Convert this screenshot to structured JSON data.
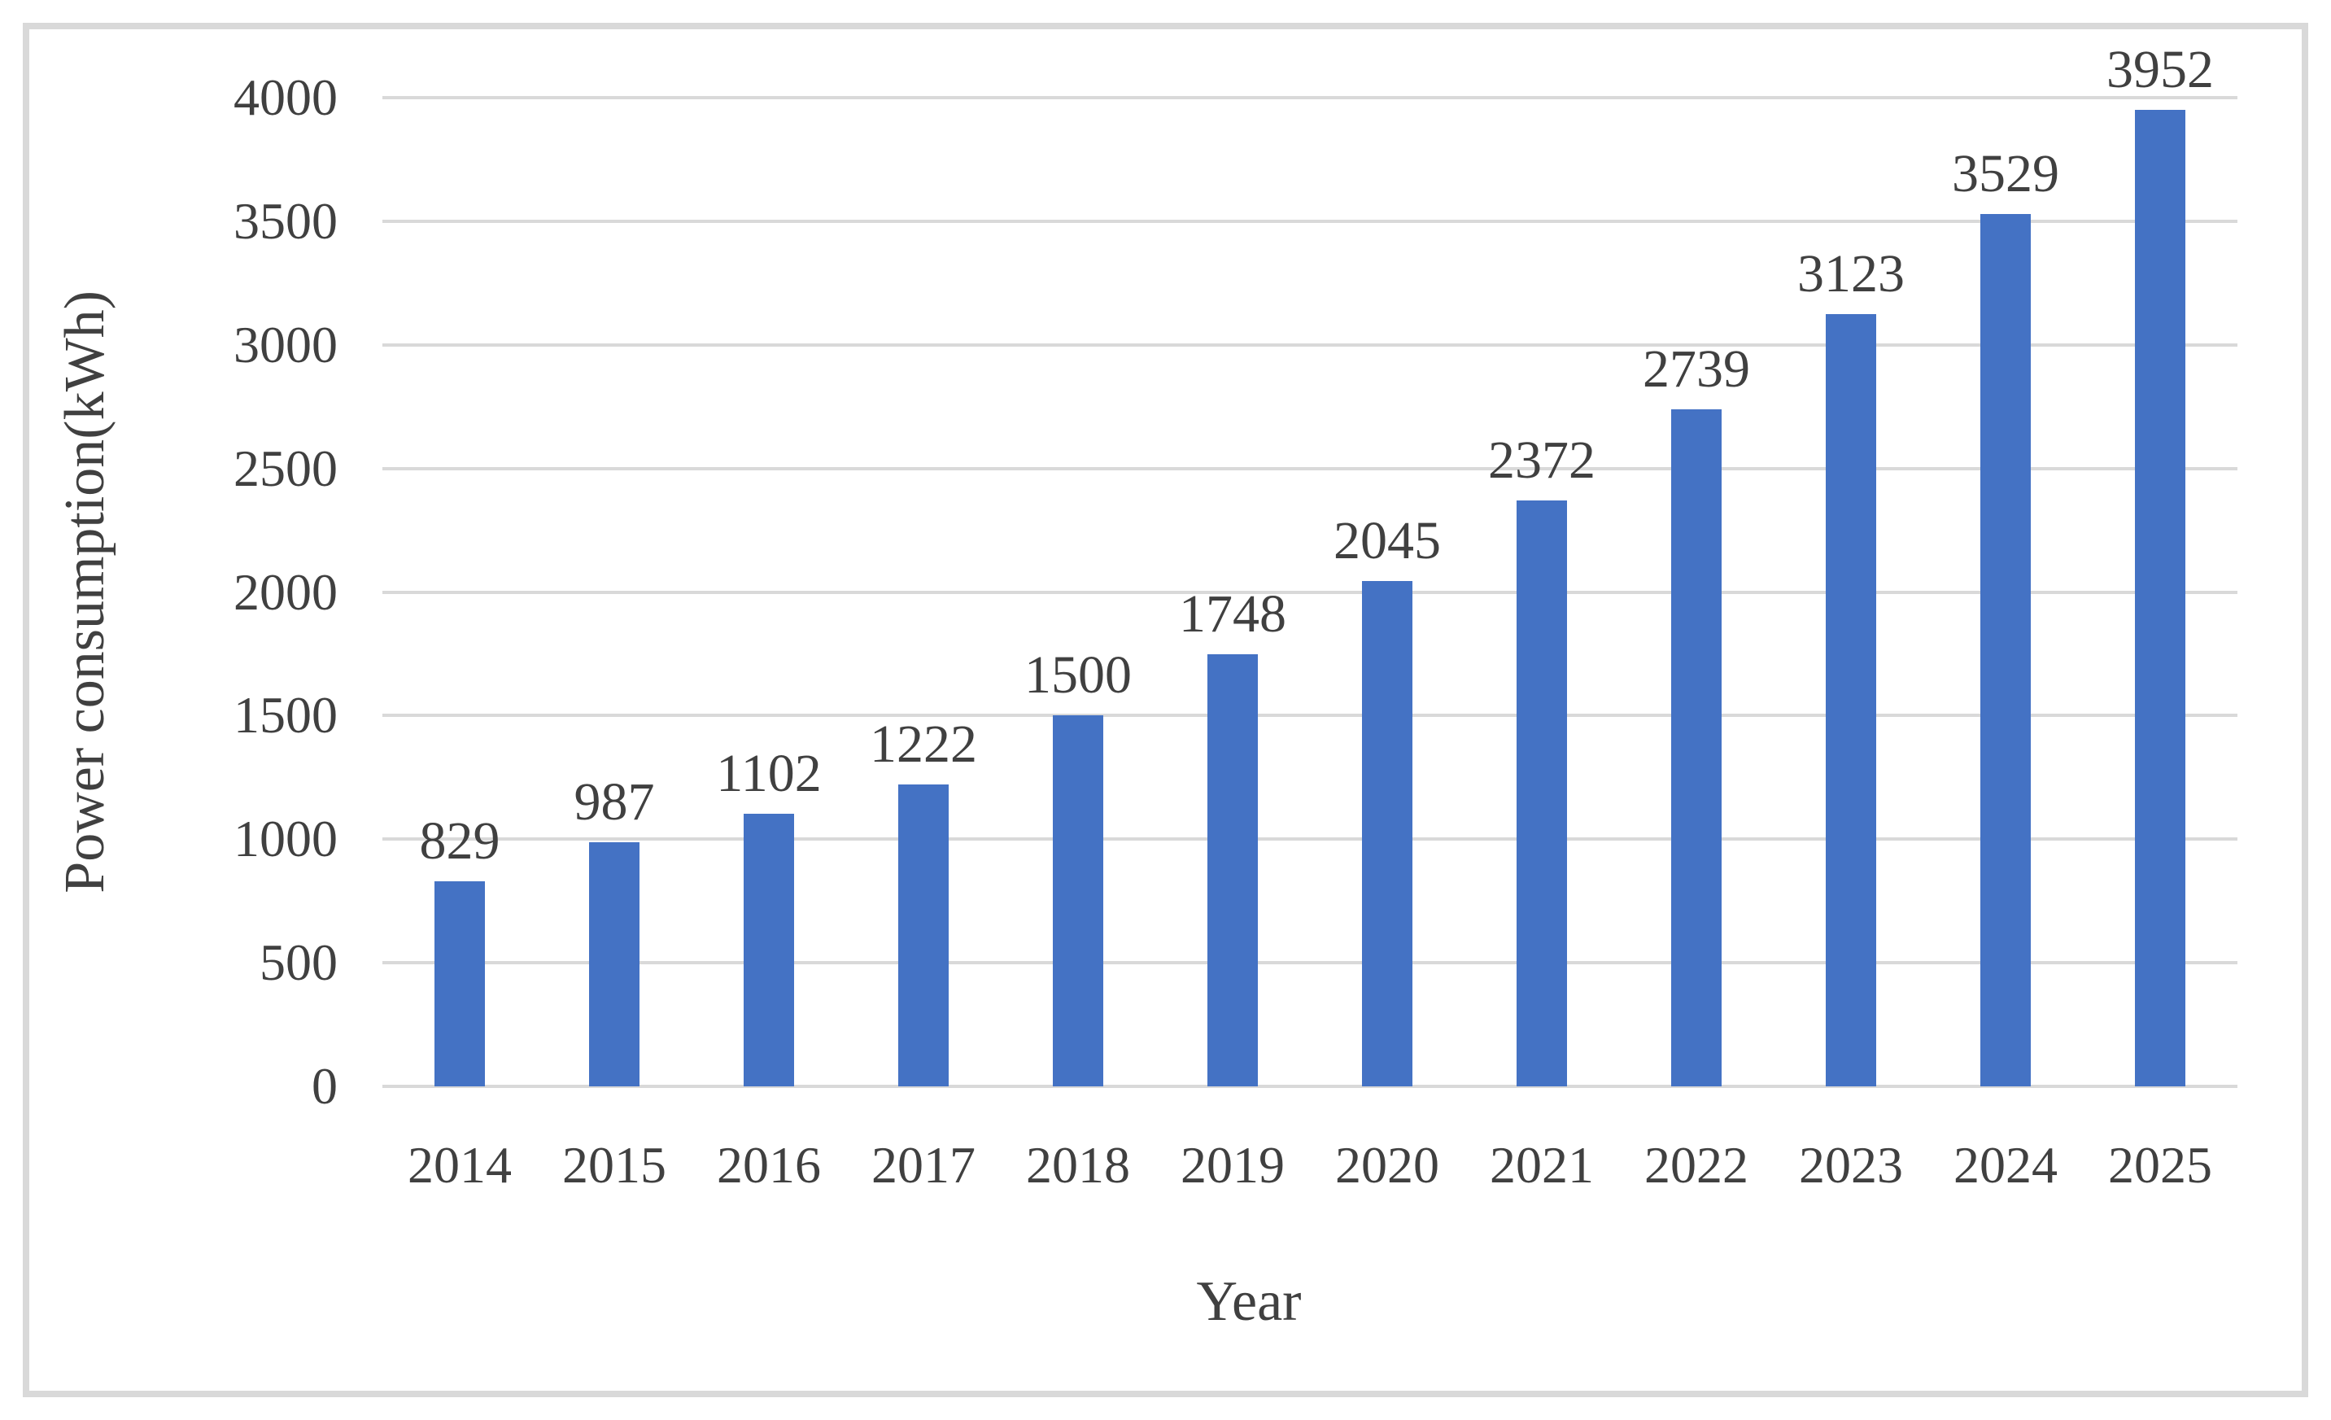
{
  "chart_data": {
    "type": "bar",
    "categories": [
      "2014",
      "2015",
      "2016",
      "2017",
      "2018",
      "2019",
      "2020",
      "2021",
      "2022",
      "2023",
      "2024",
      "2025"
    ],
    "values": [
      829,
      987,
      1102,
      1222,
      1500,
      1748,
      2045,
      2372,
      2739,
      3123,
      3529,
      3952
    ],
    "title": "",
    "xlabel": "Year",
    "ylabel": "Power consumption(kWh)",
    "ylim": [
      0,
      4000
    ],
    "yticks": [
      0,
      500,
      1000,
      1500,
      2000,
      2500,
      3000,
      3500,
      4000
    ],
    "ytick_step": 500,
    "grid": true,
    "legend": false,
    "data_labels": true,
    "colors": {
      "bar": "#4472c4",
      "gridline": "#d9d9d9",
      "frame_border": "#d9d9d9",
      "text": "#404040",
      "background": "#ffffff"
    }
  }
}
